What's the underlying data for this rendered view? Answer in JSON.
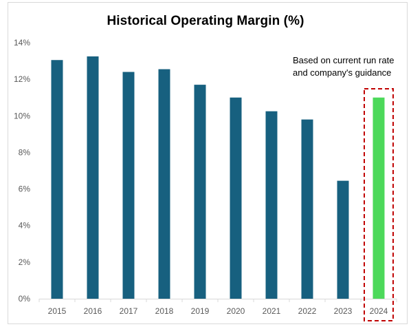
{
  "chart_data": {
    "type": "bar",
    "title": "Historical Operating Margin (%)",
    "xlabel": "",
    "ylabel": "",
    "categories": [
      "2015",
      "2016",
      "2017",
      "2018",
      "2019",
      "2020",
      "2021",
      "2022",
      "2023",
      "2024"
    ],
    "values": [
      13.05,
      13.25,
      12.4,
      12.55,
      11.7,
      11.0,
      10.25,
      9.8,
      6.45,
      11.0
    ],
    "ylim": [
      0,
      14
    ],
    "yticks": [
      0,
      2,
      4,
      6,
      8,
      10,
      12,
      14
    ],
    "ytick_format": "%",
    "grid": false,
    "legend": "none",
    "colors": {
      "default_bar": "#17607f",
      "highlight_bar": "#4cd95a",
      "highlight_box": "#c00000",
      "axis": "#d9d9d9"
    },
    "highlight_index": 9,
    "annotation": "Based on current run rate and company's guidance"
  }
}
